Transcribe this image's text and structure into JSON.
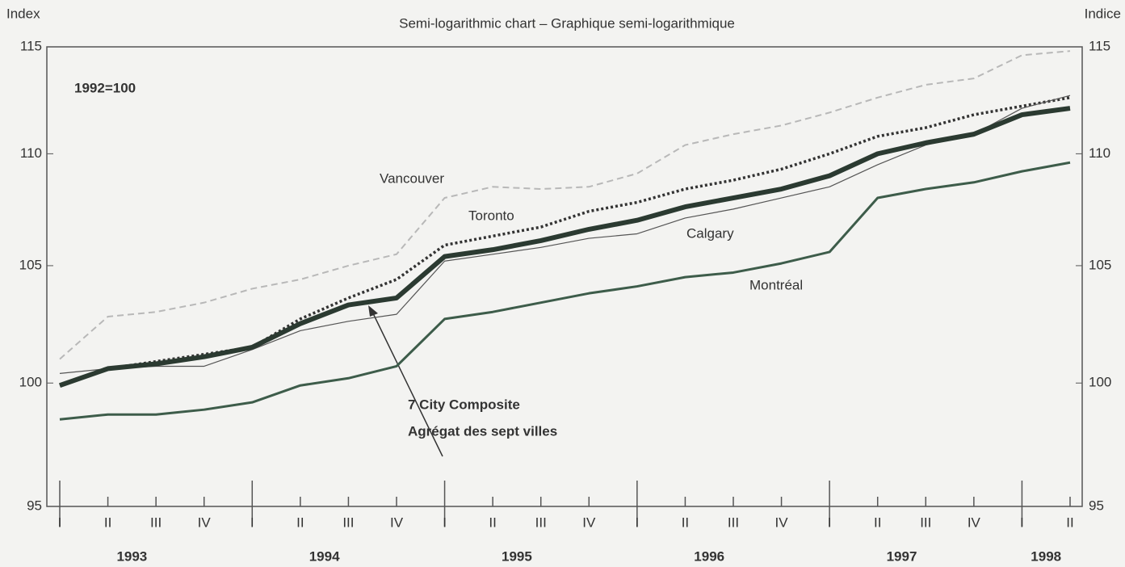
{
  "chart_data": {
    "type": "line",
    "title": "Semi-logarithmic chart – Graphique semi-logarithmique",
    "ylabel": "Index",
    "y2label": "Indice",
    "log_scale": true,
    "note": "1992=100",
    "categories": [
      "I",
      "II",
      "III",
      "IV",
      "I",
      "II",
      "III",
      "IV",
      "I",
      "II",
      "III",
      "IV",
      "I",
      "II",
      "III",
      "IV",
      "I",
      "II",
      "III",
      "IV",
      "I",
      "II"
    ],
    "years": [
      "1993",
      "1994",
      "1995",
      "1996",
      "1997",
      "1998"
    ],
    "ylim": [
      95,
      115
    ],
    "yticks": [
      95,
      100,
      105,
      110,
      115
    ],
    "y2lim": [
      95,
      115
    ],
    "y2ticks": [
      95,
      100,
      105,
      110,
      115
    ],
    "series": [
      {
        "name": "Vancouver",
        "color": "#b8b8b8",
        "style": "dashed",
        "values": [
          101.0,
          102.8,
          103.0,
          103.4,
          104.0,
          104.4,
          105.0,
          105.5,
          108.0,
          108.5,
          108.4,
          108.5,
          109.1,
          110.4,
          110.9,
          111.3,
          111.9,
          112.6,
          113.2,
          113.5,
          114.6,
          114.8
        ]
      },
      {
        "name": "Toronto",
        "color": "#333333",
        "style": "dotted",
        "values": [
          99.9,
          100.6,
          100.9,
          101.2,
          101.5,
          102.7,
          103.6,
          104.4,
          105.9,
          106.3,
          106.7,
          107.4,
          107.8,
          108.4,
          108.8,
          109.3,
          110.0,
          110.8,
          111.2,
          111.8,
          112.2,
          112.6
        ]
      },
      {
        "name": "Calgary",
        "color": "#555555",
        "style": "thin",
        "values": [
          100.4,
          100.6,
          100.7,
          100.7,
          101.4,
          102.2,
          102.6,
          102.9,
          105.2,
          105.5,
          105.8,
          106.2,
          106.4,
          107.1,
          107.5,
          108.0,
          108.5,
          109.5,
          110.4,
          110.9,
          112.1,
          112.7
        ]
      },
      {
        "name": "Montréal",
        "color": "#3d5c4a",
        "style": "solid",
        "values": [
          98.5,
          98.7,
          98.7,
          98.9,
          99.2,
          99.9,
          100.2,
          100.7,
          102.7,
          103.0,
          103.4,
          103.8,
          104.1,
          104.5,
          104.7,
          105.1,
          105.6,
          108.0,
          108.4,
          108.7,
          109.2,
          109.6
        ]
      },
      {
        "name": "7 City Composite",
        "name_fr": "Agrégat des sept villes",
        "color": "#2b3a31",
        "style": "thick",
        "values": [
          99.9,
          100.6,
          100.8,
          101.1,
          101.5,
          102.5,
          103.3,
          103.6,
          105.4,
          105.7,
          106.1,
          106.6,
          107.0,
          107.6,
          108.0,
          108.4,
          109.0,
          110.0,
          110.5,
          110.9,
          111.8,
          112.1
        ]
      }
    ]
  }
}
